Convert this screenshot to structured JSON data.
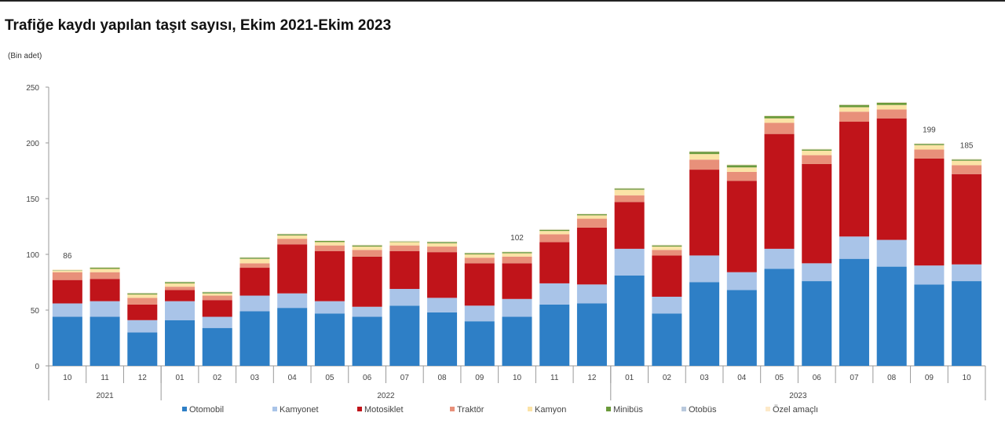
{
  "title": "Trafiğe kaydı yapılan taşıt sayısı, Ekim 2021-Ekim 2023",
  "unit": "(Bin adet)",
  "chart_data": {
    "type": "bar",
    "stacked": true,
    "title": "Trafiğe kaydı yapılan taşıt sayısı, Ekim 2021-Ekim 2023",
    "ylabel": "(Bin adet)",
    "ylim": [
      0,
      250
    ],
    "yticks": [
      0,
      50,
      100,
      150,
      200,
      250
    ],
    "categories": [
      "10",
      "11",
      "12",
      "01",
      "02",
      "03",
      "04",
      "05",
      "06",
      "07",
      "08",
      "09",
      "10",
      "11",
      "12",
      "01",
      "02",
      "03",
      "04",
      "05",
      "06",
      "07",
      "08",
      "09",
      "10"
    ],
    "years": [
      {
        "label": "2021",
        "start": 0,
        "end": 2
      },
      {
        "label": "2022",
        "start": 3,
        "end": 14
      },
      {
        "label": "2023",
        "start": 15,
        "end": 24
      }
    ],
    "legend_position": "bottom",
    "series": [
      {
        "name": "Otomobil",
        "color": "#2e7fc6",
        "values": [
          44,
          44,
          30,
          41,
          34,
          49,
          52,
          47,
          44,
          54,
          48,
          40,
          44,
          55,
          56,
          81,
          47,
          75,
          68,
          87,
          76,
          96,
          89,
          73,
          76
        ]
      },
      {
        "name": "Kamyonet",
        "color": "#a9c4e8",
        "values": [
          12,
          14,
          11,
          17,
          10,
          14,
          13,
          11,
          9,
          15,
          13,
          14,
          16,
          19,
          17,
          24,
          15,
          24,
          16,
          18,
          16,
          20,
          24,
          17,
          15
        ]
      },
      {
        "name": "Motosiklet",
        "color": "#c0141a",
        "values": [
          21,
          20,
          14,
          10,
          15,
          25,
          44,
          45,
          45,
          34,
          41,
          38,
          32,
          37,
          51,
          42,
          37,
          77,
          82,
          103,
          89,
          103,
          109,
          96,
          81
        ]
      },
      {
        "name": "Traktör",
        "color": "#e8907a",
        "values": [
          7,
          6,
          6,
          3,
          4,
          4,
          5,
          5,
          6,
          5,
          5,
          5,
          6,
          7,
          8,
          6,
          5,
          9,
          8,
          10,
          8,
          9,
          8,
          8,
          8
        ]
      },
      {
        "name": "Kamyon",
        "color": "#fbe3a6",
        "values": [
          1.5,
          3,
          3,
          3,
          2,
          4,
          3,
          3,
          3,
          3,
          3,
          3,
          3,
          3,
          3,
          5,
          3,
          5,
          4,
          4,
          4,
          4,
          4,
          4,
          4
        ]
      },
      {
        "name": "Minibüs",
        "color": "#6a9a3a",
        "values": [
          0.3,
          1,
          1,
          1,
          1,
          1,
          1,
          1,
          1,
          0.5,
          1,
          1,
          1,
          1,
          1,
          1,
          1,
          2,
          2,
          2,
          1,
          2,
          2,
          1,
          1
        ]
      },
      {
        "name": "Otobüs",
        "color": "#b9c9dd",
        "values": [
          0.2,
          0.2,
          0.2,
          0.2,
          0.2,
          0.2,
          0.2,
          0.2,
          0.2,
          0.2,
          0.2,
          0.2,
          0.2,
          0.2,
          0.2,
          0.2,
          0.2,
          0.2,
          0.2,
          0.2,
          0.2,
          0.2,
          0.2,
          0.2,
          0.2
        ]
      },
      {
        "name": "Özel amaçlı",
        "color": "#fde9c8",
        "values": [
          0.5,
          0.5,
          0.5,
          0.5,
          0.5,
          0.5,
          0.5,
          0.5,
          0.5,
          0.5,
          0.5,
          0.5,
          0.5,
          0.5,
          0.5,
          0.5,
          0.5,
          0.5,
          0.5,
          0.5,
          0.5,
          0.5,
          0.5,
          0.5,
          0.5
        ]
      }
    ],
    "data_labels": [
      {
        "index": 0,
        "text": "86"
      },
      {
        "index": 12,
        "text": "102"
      },
      {
        "index": 23,
        "text": "199"
      },
      {
        "index": 24,
        "text": "185"
      }
    ]
  }
}
